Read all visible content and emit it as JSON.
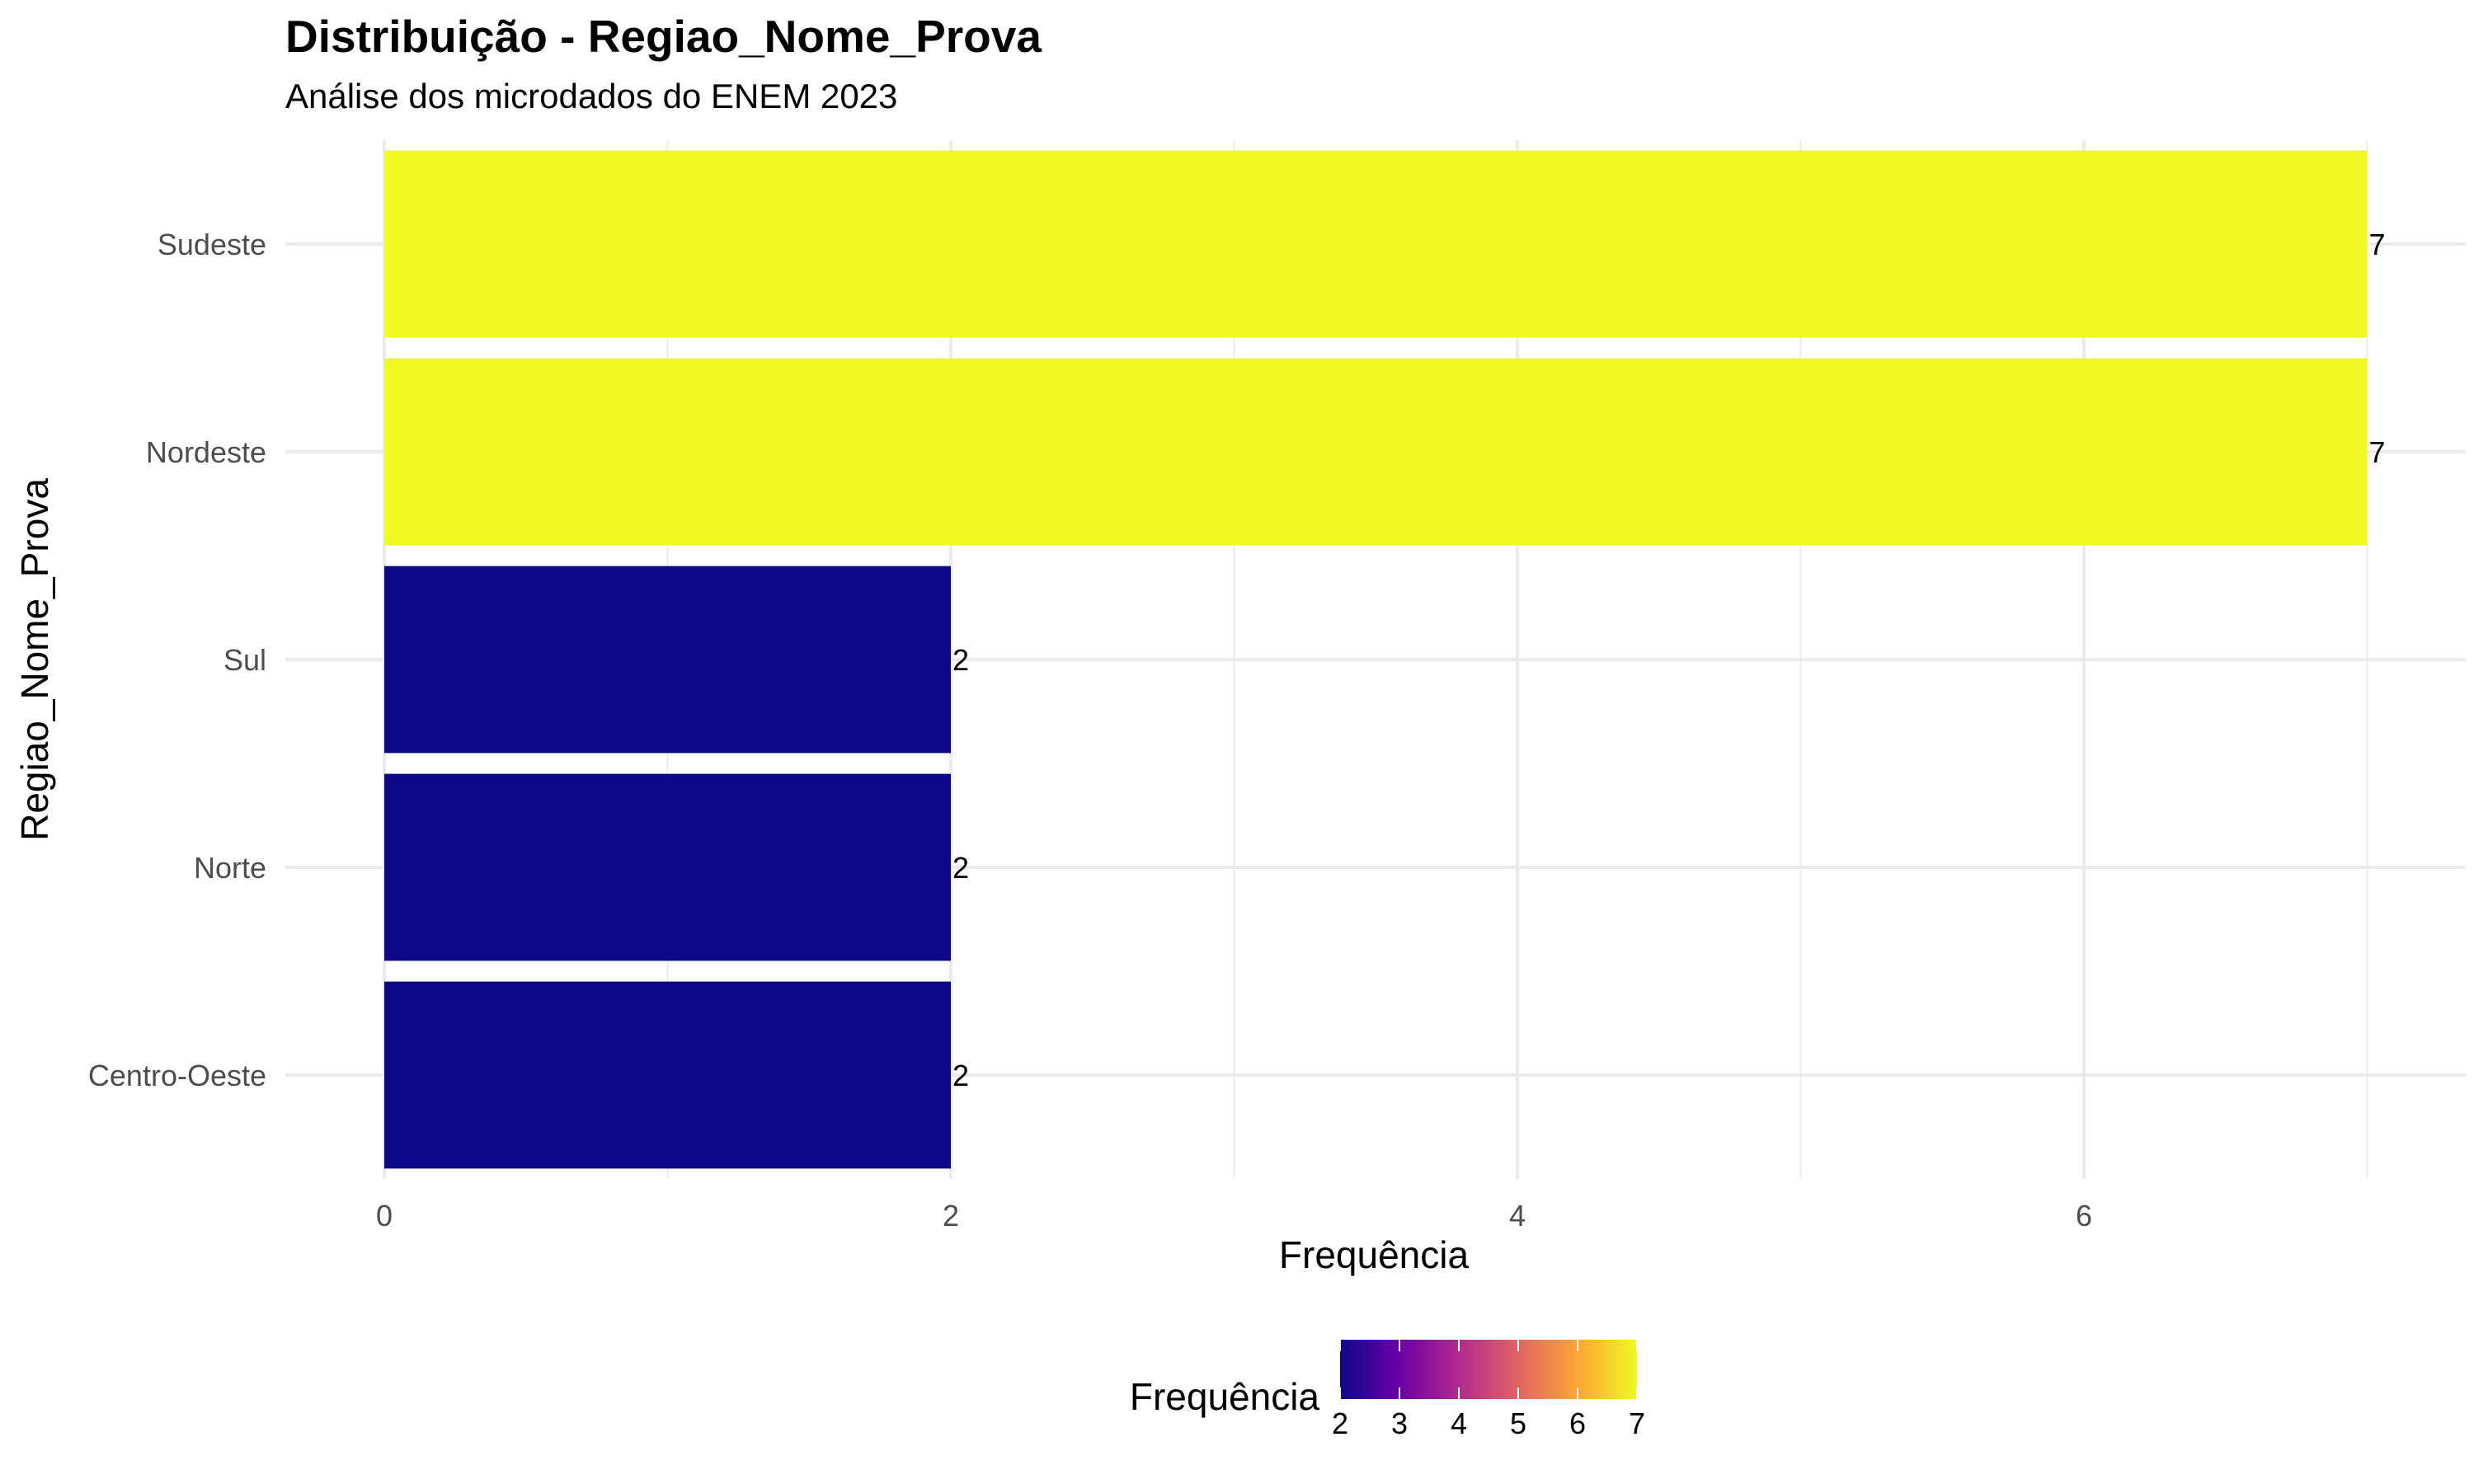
{
  "chart_data": {
    "type": "bar",
    "orientation": "horizontal",
    "title": "Distribuição - Regiao_Nome_Prova",
    "subtitle": "Análise dos microdados do ENEM 2023",
    "xlabel": "Frequência",
    "ylabel": "Regiao_Nome_Prova",
    "categories": [
      "Sudeste",
      "Nordeste",
      "Sul",
      "Norte",
      "Centro-Oeste"
    ],
    "values": [
      7,
      7,
      2,
      2,
      2
    ],
    "data_labels": [
      "7",
      "7",
      "2",
      "2",
      "2"
    ],
    "xlim": [
      0,
      7.35
    ],
    "x_ticks": [
      0,
      2,
      4,
      6
    ],
    "x_tick_labels": [
      "0",
      "2",
      "4",
      "6"
    ],
    "grid": true,
    "legend": {
      "title": "Frequência",
      "placement": "bottom",
      "type": "colorbar",
      "range": [
        2,
        7
      ],
      "ticks": [
        2,
        3,
        4,
        5,
        6,
        7
      ],
      "tick_labels": [
        "2",
        "3",
        "4",
        "5",
        "6",
        "7"
      ]
    },
    "colors": {
      "scale": [
        "#0D0887",
        "#6A00A8",
        "#B12A90",
        "#E16462",
        "#FCA636",
        "#F0F921"
      ],
      "grid": "#EBEBEB",
      "background": "#FFFFFF"
    }
  }
}
